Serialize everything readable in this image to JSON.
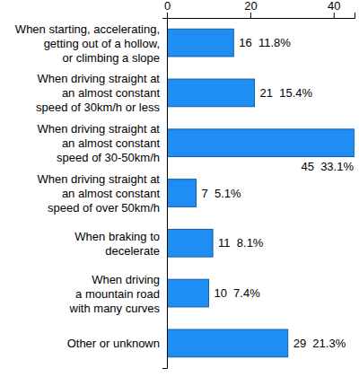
{
  "chart_data": {
    "type": "bar",
    "orientation": "horizontal",
    "categories": [
      "When starting, accelerating,\ngetting out of a hollow,\nor climbing a slope",
      "When driving straight at\nan almost constant\nspeed of 30km/h or less",
      "When driving straight at\nan almost constant\nspeed of 30-50km/h",
      "When driving straight at\nan almost constant\nspeed of over 50km/h",
      "When braking to\ndecelerate",
      "When driving\na mountain road\nwith many curves",
      "Other or unknown"
    ],
    "values": [
      16,
      21,
      45,
      7,
      11,
      10,
      29
    ],
    "value_labels": [
      "16  11.8%",
      "21  15.4%",
      "45  33.1%",
      "7  5.1%",
      "11  8.1%",
      "10  7.4%",
      "29  21.3%"
    ],
    "data_labels": true,
    "color": "#1e8ef5",
    "xlim": [
      0,
      45
    ],
    "xticks": [
      0,
      20,
      40
    ],
    "grid": false
  }
}
